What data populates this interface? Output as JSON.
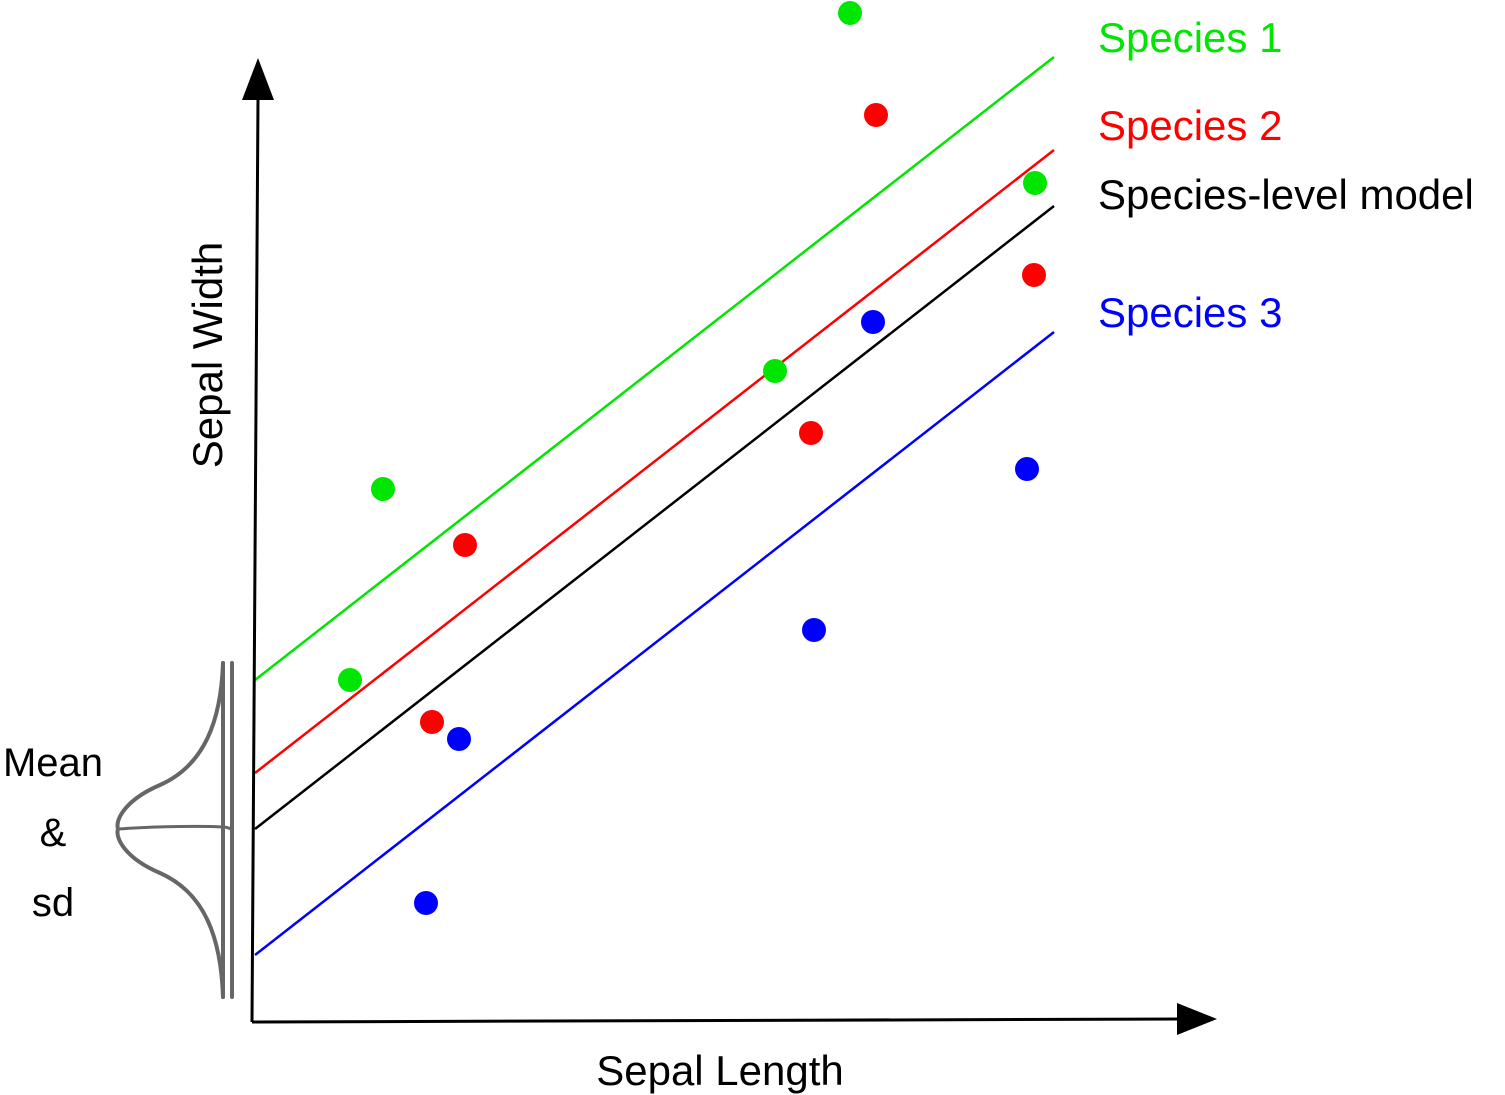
{
  "axes": {
    "x_label": "Sepal Length",
    "y_label": "Sepal Width"
  },
  "distribution": {
    "label_lines": [
      "Mean",
      "&",
      "sd"
    ],
    "color": "#666666"
  },
  "legend": [
    {
      "id": "species-1",
      "text": "Species 1",
      "color": "#00e600"
    },
    {
      "id": "species-2",
      "text": "Species 2",
      "color": "#ff0000"
    },
    {
      "id": "species-level-model",
      "text": "Species-level model",
      "color": "#000000"
    },
    {
      "id": "species-3",
      "text": "Species 3",
      "color": "#0000ff"
    }
  ],
  "colors": {
    "species_1": "#00e600",
    "species_2": "#ff0000",
    "model": "#000000",
    "species_3": "#0000ff",
    "axis": "#000000"
  }
}
